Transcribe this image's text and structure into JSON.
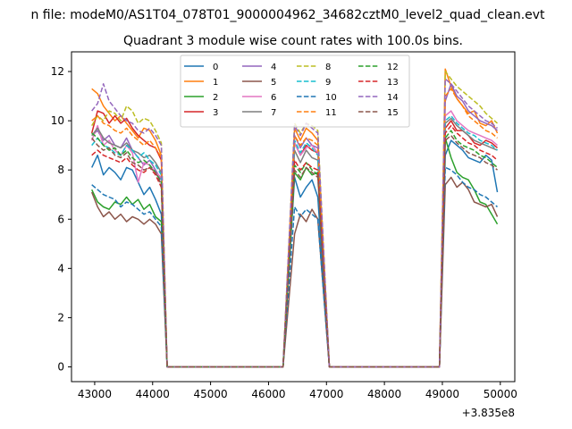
{
  "chart_data": {
    "type": "line",
    "suptitle": "n file: modeM0/AS1T04_078T01_9000004962_34682cztM0_level2_quad_clean.evt",
    "title": "Quadrant 3 module wise count rates with 100.0s bins.",
    "xlabel": "",
    "ylabel": "",
    "x_offset_label": "+3.835e8",
    "xlim": [
      42600,
      50250
    ],
    "ylim": [
      -0.6,
      12.8
    ],
    "xticks": [
      43000,
      44000,
      45000,
      46000,
      47000,
      48000,
      49000,
      50000
    ],
    "xtick_labels": [
      "43000",
      "44000",
      "45000",
      "46000",
      "47000",
      "48000",
      "49000",
      "50000"
    ],
    "yticks": [
      0,
      2,
      4,
      6,
      8,
      10,
      12
    ],
    "ytick_labels": [
      "0",
      "2",
      "4",
      "6",
      "8",
      "10",
      "12"
    ],
    "grid": false,
    "legend_placement": "upper-center, 4 columns",
    "x": {
      "seg1": [
        42950,
        43050,
        43150,
        43250,
        43350,
        43450,
        43550,
        43650,
        43750,
        43850,
        43950,
        44050,
        44150
      ],
      "seg2": [
        46450,
        46550,
        46650,
        46750,
        46850
      ],
      "seg3": [
        49050,
        49150,
        49250,
        49350,
        49450,
        49550,
        49650,
        49750,
        49850,
        49950
      ]
    },
    "series": [
      {
        "name": "0",
        "color": "#1f77b4",
        "dashed": false,
        "seg1": [
          8.1,
          8.6,
          7.8,
          8.1,
          7.9,
          7.6,
          8.1,
          8.0,
          7.5,
          7.0,
          7.3,
          6.8,
          6.2
        ],
        "seg2": [
          7.7,
          6.9,
          7.3,
          7.6,
          6.9
        ],
        "seg3": [
          8.6,
          9.2,
          9.0,
          8.8,
          8.5,
          8.4,
          8.3,
          8.6,
          8.4,
          7.1
        ]
      },
      {
        "name": "1",
        "color": "#ff7f0e",
        "dashed": false,
        "seg1": [
          11.3,
          11.1,
          10.6,
          10.3,
          10.0,
          10.2,
          9.9,
          9.6,
          9.3,
          9.7,
          9.6,
          9.2,
          8.6
        ],
        "seg2": [
          9.7,
          9.2,
          9.7,
          9.5,
          9.2
        ],
        "seg3": [
          12.1,
          11.4,
          10.9,
          10.6,
          10.3,
          10.4,
          9.9,
          9.8,
          10.0,
          9.5
        ]
      },
      {
        "name": "2",
        "color": "#2ca02c",
        "dashed": false,
        "seg1": [
          7.2,
          6.7,
          6.5,
          6.4,
          6.7,
          6.6,
          6.9,
          6.6,
          6.8,
          6.4,
          6.6,
          6.1,
          5.9
        ],
        "seg2": [
          7.9,
          7.6,
          8.1,
          7.8,
          7.9
        ],
        "seg3": [
          9.3,
          8.5,
          7.9,
          7.7,
          7.6,
          7.2,
          6.7,
          6.6,
          6.2,
          5.8
        ]
      },
      {
        "name": "3",
        "color": "#d62728",
        "dashed": false,
        "seg1": [
          9.5,
          10.4,
          10.3,
          9.9,
          10.2,
          9.9,
          10.1,
          9.7,
          9.4,
          9.2,
          9.0,
          8.9,
          8.4
        ],
        "seg2": [
          9.1,
          8.6,
          9.0,
          8.8,
          8.7
        ],
        "seg3": [
          9.7,
          10.0,
          9.6,
          9.6,
          9.4,
          9.1,
          9.0,
          9.2,
          9.1,
          8.9
        ]
      },
      {
        "name": "4",
        "color": "#9467bd",
        "dashed": false,
        "seg1": [
          9.4,
          9.6,
          9.2,
          9.4,
          9.0,
          8.9,
          9.3,
          8.8,
          8.5,
          8.2,
          8.4,
          8.0,
          7.6
        ],
        "seg2": [
          9.4,
          8.9,
          9.3,
          9.0,
          8.9
        ],
        "seg3": [
          10.8,
          11.5,
          11.0,
          10.8,
          10.4,
          10.2,
          10.0,
          9.9,
          9.8,
          9.6
        ]
      },
      {
        "name": "5",
        "color": "#8c564b",
        "dashed": false,
        "seg1": [
          7.1,
          6.5,
          6.1,
          6.3,
          6.0,
          6.2,
          5.9,
          6.1,
          6.0,
          5.8,
          6.0,
          5.8,
          5.4
        ],
        "seg2": [
          5.4,
          6.2,
          5.9,
          6.4,
          6.0
        ],
        "seg3": [
          7.4,
          7.7,
          7.3,
          7.5,
          7.2,
          6.7,
          6.6,
          6.5,
          6.6,
          6.1
        ]
      },
      {
        "name": "6",
        "color": "#e377c2",
        "dashed": false,
        "seg1": [
          9.2,
          9.8,
          9.0,
          9.2,
          8.8,
          8.6,
          9.0,
          8.7,
          7.5,
          8.3,
          8.2,
          7.9,
          7.7
        ],
        "seg2": [
          9.1,
          8.6,
          8.9,
          9.0,
          8.7
        ],
        "seg3": [
          10.2,
          10.4,
          10.0,
          9.8,
          9.6,
          9.5,
          9.4,
          9.3,
          9.2,
          9.0
        ]
      },
      {
        "name": "7",
        "color": "#7f7f7f",
        "dashed": false,
        "seg1": [
          9.4,
          9.7,
          9.3,
          9.1,
          9.0,
          8.9,
          9.1,
          8.8,
          8.7,
          8.5,
          8.6,
          8.3,
          7.9
        ],
        "seg2": [
          8.8,
          8.3,
          8.8,
          8.5,
          8.4
        ],
        "seg3": [
          9.9,
          10.1,
          9.8,
          9.6,
          9.4,
          9.2,
          9.1,
          9.0,
          8.9,
          8.8
        ]
      },
      {
        "name": "8",
        "color": "#bcbd22",
        "dashed": true,
        "seg1": [
          9.8,
          10.2,
          10.0,
          10.4,
          10.3,
          10.0,
          10.6,
          10.4,
          9.9,
          10.1,
          10.0,
          9.6,
          9.1
        ],
        "seg2": [
          9.9,
          9.5,
          9.9,
          9.8,
          9.6
        ],
        "seg3": [
          12.0,
          11.7,
          11.4,
          11.2,
          11.0,
          10.8,
          10.6,
          10.3,
          10.1,
          9.9
        ]
      },
      {
        "name": "9",
        "color": "#17becf",
        "dashed": true,
        "seg1": [
          9.0,
          9.3,
          9.0,
          8.9,
          8.7,
          8.6,
          9.0,
          8.8,
          8.5,
          8.7,
          8.4,
          8.2,
          7.8
        ],
        "seg2": [
          9.2,
          8.7,
          9.1,
          8.9,
          8.6
        ],
        "seg3": [
          10.0,
          10.2,
          9.9,
          9.7,
          9.5,
          9.4,
          9.2,
          9.1,
          9.0,
          8.8
        ]
      },
      {
        "name": "10",
        "color": "#1f77b4",
        "dashed": true,
        "seg1": [
          7.4,
          7.2,
          7.0,
          6.9,
          6.8,
          6.5,
          6.7,
          6.6,
          6.4,
          6.2,
          6.3,
          6.0,
          5.7
        ],
        "seg2": [
          6.5,
          6.1,
          6.4,
          6.2,
          6.0
        ],
        "seg3": [
          8.1,
          8.0,
          7.8,
          7.5,
          7.3,
          7.2,
          7.0,
          6.9,
          6.7,
          6.5
        ]
      },
      {
        "name": "11",
        "color": "#ff7f0e",
        "dashed": true,
        "seg1": [
          10.0,
          10.2,
          9.9,
          9.8,
          9.6,
          9.5,
          9.7,
          9.4,
          9.2,
          9.0,
          9.2,
          8.9,
          8.5
        ],
        "seg2": [
          9.4,
          9.0,
          9.3,
          9.2,
          9.0
        ],
        "seg3": [
          11.0,
          11.3,
          10.9,
          10.6,
          10.2,
          10.0,
          9.8,
          9.6,
          9.5,
          9.3
        ]
      },
      {
        "name": "12",
        "color": "#2ca02c",
        "dashed": true,
        "seg1": [
          9.5,
          9.3,
          9.0,
          8.8,
          8.9,
          8.6,
          8.8,
          8.5,
          8.3,
          8.4,
          8.2,
          7.9,
          7.5
        ],
        "seg2": [
          8.2,
          7.9,
          8.3,
          8.0,
          7.8
        ],
        "seg3": [
          9.3,
          9.6,
          9.2,
          9.0,
          8.9,
          8.8,
          8.6,
          8.5,
          8.3,
          8.1
        ]
      },
      {
        "name": "13",
        "color": "#d62728",
        "dashed": true,
        "seg1": [
          8.6,
          8.8,
          8.6,
          8.5,
          8.4,
          8.3,
          8.5,
          8.2,
          8.0,
          7.9,
          8.1,
          7.8,
          7.3
        ],
        "seg2": [
          8.4,
          8.0,
          8.3,
          8.1,
          8.0
        ],
        "seg3": [
          9.5,
          9.8,
          9.5,
          9.3,
          9.1,
          9.0,
          8.8,
          8.7,
          8.6,
          8.4
        ]
      },
      {
        "name": "14",
        "color": "#9467bd",
        "dashed": true,
        "seg1": [
          10.4,
          10.7,
          11.5,
          10.8,
          10.5,
          10.2,
          10.0,
          9.9,
          9.6,
          9.5,
          9.7,
          9.4,
          9.0
        ],
        "seg2": [
          9.8,
          9.4,
          9.9,
          9.7,
          9.5
        ],
        "seg3": [
          11.7,
          11.5,
          11.2,
          10.9,
          10.6,
          10.4,
          10.2,
          10.0,
          9.9,
          9.7
        ]
      },
      {
        "name": "15",
        "color": "#8c564b",
        "dashed": true,
        "seg1": [
          9.3,
          9.0,
          8.8,
          8.9,
          8.6,
          8.5,
          8.7,
          8.3,
          8.2,
          8.0,
          8.1,
          7.9,
          7.4
        ],
        "seg2": [
          8.0,
          7.7,
          8.1,
          7.9,
          7.7
        ],
        "seg3": [
          9.2,
          9.4,
          9.1,
          8.9,
          8.7,
          8.6,
          8.5,
          8.3,
          8.2,
          8.0
        ]
      }
    ]
  }
}
